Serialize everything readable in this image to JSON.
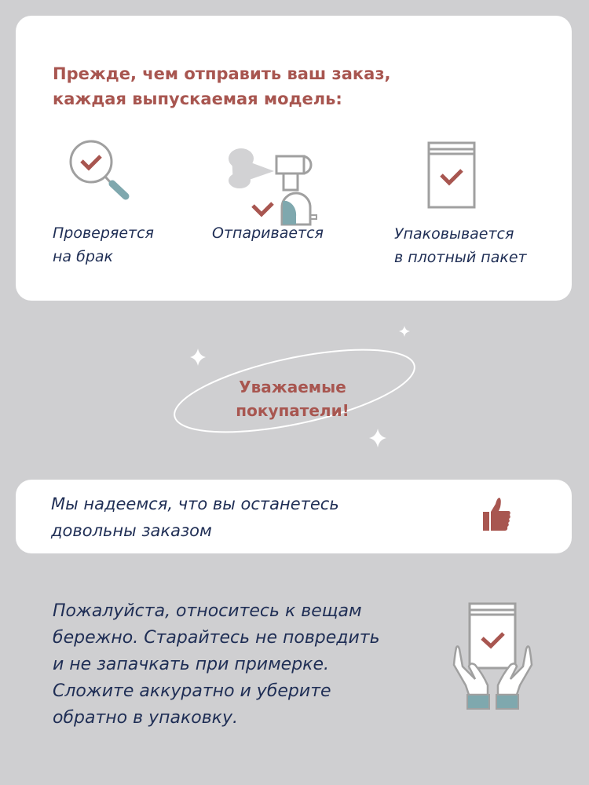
{
  "header": {
    "line1": "Прежде, чем отправить ваш заказ,",
    "line2": "каждая выпускаемая модель:"
  },
  "steps": [
    {
      "icon": "magnifier-check-icon",
      "line1": "Проверяется",
      "line2": "на брак"
    },
    {
      "icon": "steamer-icon",
      "line1": "Отпаривается",
      "line2": ""
    },
    {
      "icon": "package-check-icon",
      "line1": "Упаковывается",
      "line2": "в плотный пакет"
    }
  ],
  "greeting": {
    "line1": "Уважаемые",
    "line2": "покупатели!"
  },
  "hope": {
    "line1": "Мы надеемся, что вы останетесь",
    "line2": "довольны заказом",
    "icon": "thumbs-up-icon"
  },
  "care": {
    "lines": [
      "Пожалуйста, относитесь к вещам",
      "бережно. Старайтесь не повредить",
      "и не запачкать при примерке.",
      "Сложите аккуратно и уберите",
      "обратно в упаковку."
    ],
    "icon": "hands-package-icon"
  },
  "colors": {
    "accent": "#a85650",
    "text": "#1f2e55",
    "background": "#cfcfd1",
    "teal": "#7fa8ae",
    "gray": "#a0a0a0"
  }
}
